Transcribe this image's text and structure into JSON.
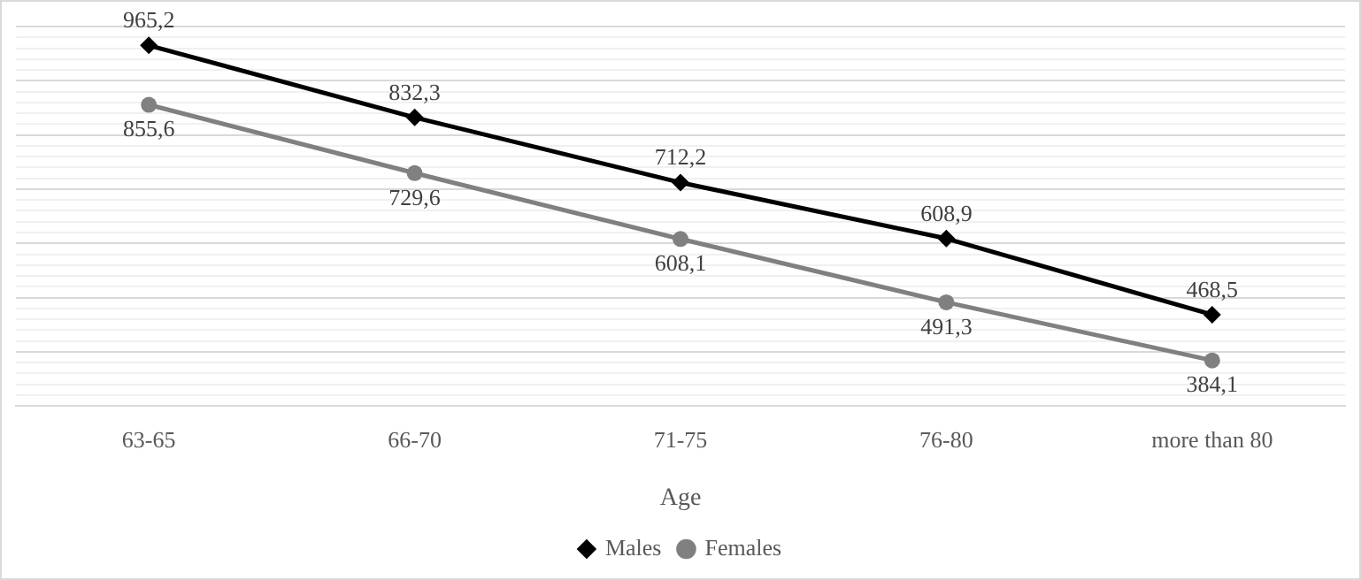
{
  "chart_data": {
    "type": "line",
    "xlabel": "Age",
    "categories": [
      "63-65",
      "66-70",
      "71-75",
      "76-80",
      "more than 80"
    ],
    "series": [
      {
        "name": "Males",
        "color": "#000000",
        "marker": "diamond",
        "values": [
          965.2,
          832.3,
          712.2,
          608.9,
          468.5
        ],
        "value_labels": [
          "965,2",
          "832,3",
          "712,2",
          "608,9",
          "468,5"
        ]
      },
      {
        "name": "Females",
        "color": "#808080",
        "marker": "circle",
        "values": [
          855.6,
          729.6,
          608.1,
          491.3,
          384.1
        ],
        "value_labels": [
          "855,6",
          "729,6",
          "608,1",
          "491,3",
          "384,1"
        ]
      }
    ],
    "ylim": [
      300,
      1000
    ],
    "yticks": [
      {
        "value": 300,
        "label": null
      },
      {
        "value": 320,
        "label": null
      },
      {
        "value": 340,
        "label": null
      },
      {
        "value": 360,
        "label": null
      },
      {
        "value": 380,
        "label": null
      },
      {
        "value": 400,
        "label": null
      },
      {
        "value": 420,
        "label": null
      },
      {
        "value": 440,
        "label": null
      },
      {
        "value": 460,
        "label": null
      },
      {
        "value": 480,
        "label": null
      },
      {
        "value": 500,
        "label": null
      },
      {
        "value": 520,
        "label": null
      },
      {
        "value": 540,
        "label": null
      },
      {
        "value": 560,
        "label": null
      },
      {
        "value": 580,
        "label": null
      },
      {
        "value": 600,
        "label": null
      },
      {
        "value": 620,
        "label": null
      },
      {
        "value": 640,
        "label": null
      },
      {
        "value": 660,
        "label": null
      },
      {
        "value": 680,
        "label": null
      },
      {
        "value": 700,
        "label": null
      },
      {
        "value": 720,
        "label": null
      },
      {
        "value": 740,
        "label": null
      },
      {
        "value": 760,
        "label": null
      },
      {
        "value": 780,
        "label": null
      },
      {
        "value": 800,
        "label": null
      },
      {
        "value": 820,
        "label": null
      },
      {
        "value": 840,
        "label": null
      },
      {
        "value": 860,
        "label": null
      },
      {
        "value": 880,
        "label": null
      },
      {
        "value": 900,
        "label": null
      },
      {
        "value": 920,
        "label": null
      },
      {
        "value": 940,
        "label": null
      },
      {
        "value": 960,
        "label": null
      },
      {
        "value": 980,
        "label": null
      },
      {
        "value": 1000,
        "label": null
      }
    ],
    "grid": "y",
    "tick_labels": "x",
    "legend": "bottom",
    "line_style": "solid"
  }
}
